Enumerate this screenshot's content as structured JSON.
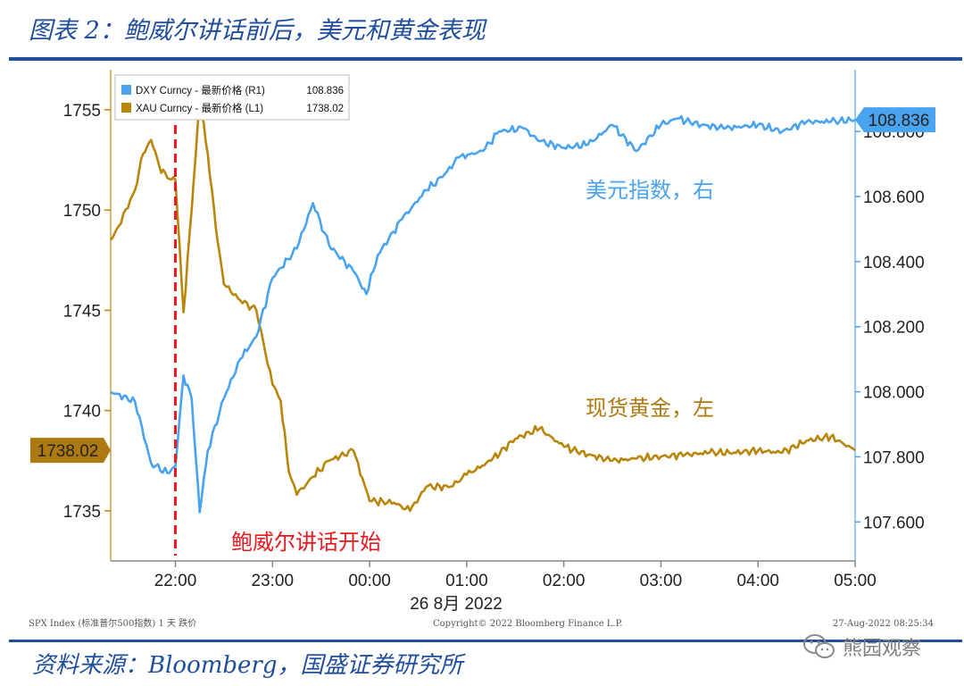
{
  "header": {
    "title": "图表 2：鲍威尔讲话前后，美元和黄金表现"
  },
  "footer": {
    "source": "资料来源：Bloomberg，国盛证券研究所",
    "watermark": "熊园观察",
    "index_note": "SPX Index (标准普尔500指数) 1 天   跌价",
    "copyright": "Copyright© 2022 Bloomberg Finance L.P.",
    "timestamp": "27-Aug-2022 08:25:34"
  },
  "icons": {
    "watermark": "wechat-icon"
  },
  "colors": {
    "dxy": "#4aa3ee",
    "xau": "#b8860b",
    "xau_label": "#ad7a12",
    "event_line": "#e8191f",
    "brand": "#1f4e9c"
  },
  "chart_data": {
    "type": "line",
    "x_ticks": [
      "22:00",
      "23:00",
      "00:00",
      "01:00",
      "02:00",
      "03:00",
      "04:00",
      "05:00"
    ],
    "x_date_label": "26 8月 2022",
    "x_range": [
      "21:20",
      "05:00"
    ],
    "y_left": {
      "ticks": [
        "1755",
        "1750",
        "1745",
        "1740",
        "1735"
      ],
      "range": [
        1732.5,
        1757
      ]
    },
    "y_right": {
      "ticks": [
        "108.800",
        "108.600",
        "108.400",
        "108.200",
        "108.000",
        "107.800",
        "107.600"
      ],
      "range": [
        107.48,
        108.99
      ]
    },
    "legend": {
      "position": "top-left",
      "items": [
        {
          "text": "DXY Curncy - 最新价格 (R1)",
          "value": "108.836"
        },
        {
          "text": "XAU Curncy - 最新价格 (L1)",
          "value": "1738.02"
        }
      ]
    },
    "last_value_tags": {
      "left": "1738.02",
      "right": "108.836"
    },
    "series": [
      {
        "name": "DXY Curncy - 最新价格 (R1)",
        "axis": "right",
        "points": [
          [
            "21:20",
            108.0
          ],
          [
            "21:35",
            107.97
          ],
          [
            "21:45",
            107.78
          ],
          [
            "21:55",
            107.75
          ],
          [
            "22:00",
            107.77
          ],
          [
            "22:05",
            108.05
          ],
          [
            "22:10",
            107.98
          ],
          [
            "22:15",
            107.63
          ],
          [
            "22:20",
            107.82
          ],
          [
            "22:30",
            107.98
          ],
          [
            "22:40",
            108.1
          ],
          [
            "22:50",
            108.17
          ],
          [
            "23:00",
            108.35
          ],
          [
            "23:15",
            108.44
          ],
          [
            "23:25",
            108.58
          ],
          [
            "23:35",
            108.45
          ],
          [
            "23:50",
            108.37
          ],
          [
            "23:58",
            108.3
          ],
          [
            "24:05",
            108.42
          ],
          [
            "24:20",
            108.53
          ],
          [
            "24:35",
            108.62
          ],
          [
            "24:45",
            108.66
          ],
          [
            "24:55",
            108.72
          ],
          [
            "25:10",
            108.74
          ],
          [
            "25:20",
            108.8
          ],
          [
            "25:35",
            108.81
          ],
          [
            "25:45",
            108.77
          ],
          [
            "26:00",
            108.75
          ],
          [
            "26:15",
            108.76
          ],
          [
            "26:30",
            108.82
          ],
          [
            "26:45",
            108.74
          ],
          [
            "27:00",
            108.82
          ],
          [
            "27:10",
            108.84
          ],
          [
            "27:25",
            108.82
          ],
          [
            "27:40",
            108.81
          ],
          [
            "28:00",
            108.82
          ],
          [
            "28:15",
            108.8
          ],
          [
            "28:30",
            108.83
          ],
          [
            "28:45",
            108.83
          ],
          [
            "29:00",
            108.836
          ]
        ]
      },
      {
        "name": "XAU Curncy - 最新价格 (L1)",
        "axis": "left",
        "points": [
          [
            "21:20",
            1748.5
          ],
          [
            "21:25",
            1749.2
          ],
          [
            "21:35",
            1751.0
          ],
          [
            "21:40",
            1752.8
          ],
          [
            "21:45",
            1753.5
          ],
          [
            "21:50",
            1752.2
          ],
          [
            "21:55",
            1751.6
          ],
          [
            "22:00",
            1751.5
          ],
          [
            "22:05",
            1744.9
          ],
          [
            "22:10",
            1750.0
          ],
          [
            "22:15",
            1755.5
          ],
          [
            "22:20",
            1752.8
          ],
          [
            "22:25",
            1749.1
          ],
          [
            "22:30",
            1746.3
          ],
          [
            "22:40",
            1745.5
          ],
          [
            "22:50",
            1745.0
          ],
          [
            "23:00",
            1741.3
          ],
          [
            "23:05",
            1740.5
          ],
          [
            "23:10",
            1737.0
          ],
          [
            "23:15",
            1735.8
          ],
          [
            "23:25",
            1736.7
          ],
          [
            "23:35",
            1737.5
          ],
          [
            "23:50",
            1738.0
          ],
          [
            "24:00",
            1735.5
          ],
          [
            "24:15",
            1735.4
          ],
          [
            "24:25",
            1735.0
          ],
          [
            "24:35",
            1736.2
          ],
          [
            "24:50",
            1736.2
          ],
          [
            "25:00",
            1736.8
          ],
          [
            "25:15",
            1737.5
          ],
          [
            "25:30",
            1738.6
          ],
          [
            "25:45",
            1739.1
          ],
          [
            "26:00",
            1738.2
          ],
          [
            "26:15",
            1737.8
          ],
          [
            "26:30",
            1737.5
          ],
          [
            "26:45",
            1737.6
          ],
          [
            "27:00",
            1737.7
          ],
          [
            "27:15",
            1737.8
          ],
          [
            "27:30",
            1737.9
          ],
          [
            "27:45",
            1737.9
          ],
          [
            "28:00",
            1738.0
          ],
          [
            "28:15",
            1737.9
          ],
          [
            "28:30",
            1738.5
          ],
          [
            "28:45",
            1738.7
          ],
          [
            "29:00",
            1738.02
          ]
        ]
      }
    ],
    "annotations": [
      {
        "text": "美元指数，右",
        "series": "DXY Curncy - 最新价格 (R1)"
      },
      {
        "text": "现货黄金，左",
        "series": "XAU Curncy - 最新价格 (L1)"
      },
      {
        "text": "鲍威尔讲话开始",
        "at": "22:00"
      }
    ]
  }
}
